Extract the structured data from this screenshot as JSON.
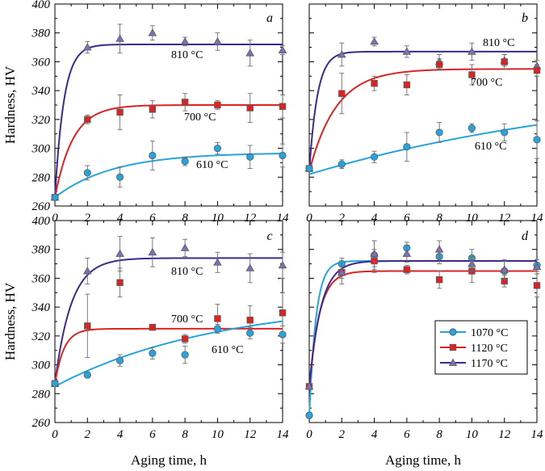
{
  "colors": {
    "610": "#29a3dc",
    "700": "#d92424",
    "810": "#3d2a8c",
    "marker_810": "#7f6fb6",
    "errbar": "#6e6e6e"
  },
  "chart_data": [
    {
      "type": "scatter",
      "panel": "a",
      "ylabel": "Hardness, HV",
      "ylim": [
        260,
        400
      ],
      "xlim": [
        0,
        14
      ],
      "x_ticks": [
        0,
        2,
        4,
        6,
        8,
        10,
        12,
        14
      ],
      "y_ticks": [
        260,
        280,
        300,
        320,
        340,
        360,
        380,
        400
      ],
      "annotations": [
        "810 °C",
        "700 °C",
        "610 °C"
      ],
      "series": [
        {
          "key": "810",
          "x": [
            0,
            2,
            4,
            6,
            8,
            10,
            12,
            14
          ],
          "y": [
            266,
            370,
            376,
            380,
            374,
            374,
            366,
            368
          ],
          "err": [
            2,
            4,
            10,
            5,
            3,
            6,
            9,
            3
          ]
        },
        {
          "key": "700",
          "x": [
            0,
            2,
            4,
            6,
            8,
            10,
            12,
            14
          ],
          "y": [
            266,
            320,
            325,
            327,
            332,
            330,
            328,
            329
          ],
          "err": [
            2,
            3,
            12,
            6,
            6,
            3,
            10,
            8
          ]
        },
        {
          "key": "610",
          "x": [
            0,
            2,
            4,
            6,
            8,
            10,
            12,
            14
          ],
          "y": [
            266,
            283,
            280,
            295,
            291,
            300,
            294,
            295
          ],
          "err": [
            2,
            5,
            7,
            10,
            3,
            4,
            8,
            8
          ]
        }
      ],
      "fits": [
        {
          "key": "810",
          "y0": 266,
          "ymax": 372,
          "k": 1.8
        },
        {
          "key": "700",
          "y0": 266,
          "ymax": 330,
          "k": 0.9
        },
        {
          "key": "610",
          "y0": 266,
          "ymax": 297,
          "k": 0.28
        }
      ]
    },
    {
      "type": "scatter",
      "panel": "b",
      "ylim": [
        260,
        400
      ],
      "xlim": [
        0,
        14
      ],
      "x_ticks": [
        0,
        2,
        4,
        6,
        8,
        10,
        12,
        14
      ],
      "y_ticks": [
        260,
        280,
        300,
        320,
        340,
        360,
        380,
        400
      ],
      "annotations": [
        "810 °C",
        "700 °C",
        "610 °C"
      ],
      "series": [
        {
          "key": "810",
          "x": [
            0,
            2,
            4,
            6,
            8,
            10,
            12,
            14
          ],
          "y": [
            286,
            365,
            374,
            367,
            360,
            367,
            361,
            357
          ],
          "err": [
            2,
            8,
            3,
            4,
            5,
            6,
            4,
            4
          ]
        },
        {
          "key": "700",
          "x": [
            0,
            2,
            4,
            6,
            8,
            10,
            12,
            14
          ],
          "y": [
            286,
            338,
            345,
            344,
            358,
            351,
            360,
            354
          ],
          "err": [
            2,
            14,
            5,
            7,
            4,
            7,
            5,
            4
          ]
        },
        {
          "key": "610",
          "x": [
            0,
            2,
            4,
            6,
            8,
            10,
            12,
            14
          ],
          "y": [
            286,
            289,
            294,
            301,
            311,
            314,
            311,
            306
          ],
          "err": [
            2,
            3,
            4,
            10,
            7,
            3,
            6,
            13
          ]
        }
      ],
      "fits": [
        {
          "key": "810",
          "y0": 284,
          "ymax": 367,
          "k": 2.0
        },
        {
          "key": "700",
          "y0": 284,
          "ymax": 355,
          "k": 0.6
        },
        {
          "key": "610",
          "y0": 282,
          "ymax": 350,
          "k": 0.05
        }
      ]
    },
    {
      "type": "scatter",
      "panel": "c",
      "ylabel": "Hardness, HV",
      "ylim": [
        260,
        400
      ],
      "xlim": [
        0,
        14
      ],
      "x_ticks": [
        0,
        2,
        4,
        6,
        8,
        10,
        12,
        14
      ],
      "y_ticks": [
        260,
        280,
        300,
        320,
        340,
        360,
        380,
        400
      ],
      "annotations": [
        "810 °C",
        "700 °C",
        "610 °C"
      ],
      "series": [
        {
          "key": "810",
          "x": [
            0,
            2,
            4,
            6,
            8,
            10,
            12,
            14
          ],
          "y": [
            287,
            365,
            377,
            378,
            381,
            371,
            367,
            369
          ],
          "err": [
            2,
            9,
            12,
            10,
            6,
            7,
            10,
            9
          ]
        },
        {
          "key": "700",
          "x": [
            0,
            2,
            4,
            6,
            8,
            10,
            12,
            14
          ],
          "y": [
            287,
            327,
            357,
            326,
            318,
            332,
            331,
            336
          ],
          "err": [
            2,
            22,
            10,
            2,
            3,
            10,
            10,
            14
          ]
        },
        {
          "key": "610",
          "x": [
            0,
            2,
            4,
            6,
            8,
            10,
            12,
            14
          ],
          "y": [
            287,
            293,
            303,
            308,
            307,
            325,
            322,
            321
          ],
          "err": [
            2,
            2,
            4,
            4,
            6,
            3,
            4,
            6
          ]
        }
      ],
      "fits": [
        {
          "key": "810",
          "y0": 287,
          "ymax": 374,
          "k": 1.0
        },
        {
          "key": "700",
          "y0": 287,
          "ymax": 325,
          "k": 1.8
        },
        {
          "key": "610",
          "y0": 285,
          "ymax": 345,
          "k": 0.1
        }
      ]
    },
    {
      "type": "scatter",
      "panel": "d",
      "xlim": [
        0,
        14
      ],
      "ylim": [
        260,
        400
      ],
      "x_ticks": [
        0,
        2,
        4,
        6,
        8,
        10,
        12,
        14
      ],
      "y_ticks": [
        260,
        280,
        300,
        320,
        340,
        360,
        380,
        400
      ],
      "legend": {
        "placement": "lower-right",
        "entries": [
          {
            "key": "610",
            "label": "1070 °C",
            "marker": "circle"
          },
          {
            "key": "700",
            "label": "1120 °C",
            "marker": "square"
          },
          {
            "key": "810",
            "label": "1170 °C",
            "marker": "triangle"
          }
        ]
      },
      "series": [
        {
          "key": "610",
          "x": [
            0,
            2,
            4,
            6,
            8,
            10,
            12,
            14
          ],
          "y": [
            265,
            370,
            376,
            381,
            375,
            374,
            365,
            369
          ],
          "err": [
            2,
            4,
            10,
            4,
            5,
            6,
            7,
            4
          ]
        },
        {
          "key": "700",
          "x": [
            0,
            2,
            4,
            6,
            8,
            10,
            12,
            14
          ],
          "y": [
            285,
            364,
            372,
            366,
            359,
            365,
            358,
            355
          ],
          "err": [
            2,
            8,
            8,
            3,
            6,
            8,
            4,
            8
          ]
        },
        {
          "key": "810",
          "x": [
            0,
            2,
            4,
            6,
            8,
            10,
            12,
            14
          ],
          "y": [
            285,
            364,
            377,
            377,
            380,
            370,
            366,
            368
          ],
          "err": [
            2,
            4,
            9,
            6,
            6,
            5,
            7,
            5
          ]
        }
      ],
      "fits": [
        {
          "key": "610",
          "y0": 265,
          "ymax": 372,
          "k": 2.4
        },
        {
          "key": "700",
          "y0": 284,
          "ymax": 365,
          "k": 1.6
        },
        {
          "key": "810",
          "y0": 284,
          "ymax": 372,
          "k": 1.4
        }
      ]
    }
  ],
  "x_axis_title": "Aging time, h"
}
